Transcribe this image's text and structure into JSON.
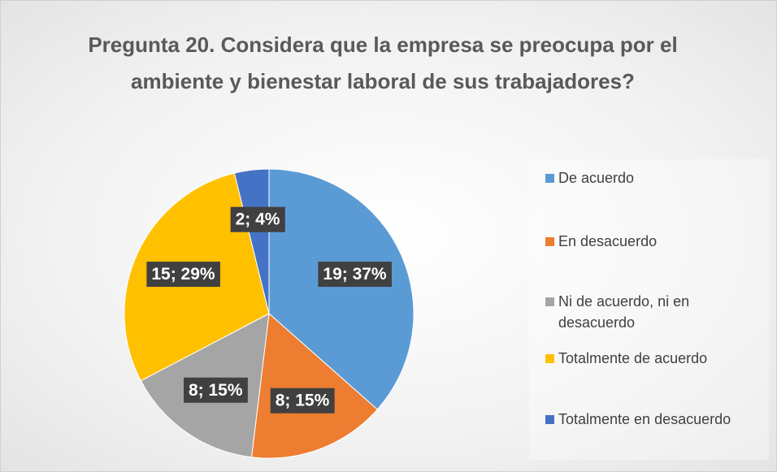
{
  "chart_data": {
    "type": "pie",
    "title": "Pregunta 20. Considera que la empresa se preocupa por el ambiente y bienestar laboral de sus trabajadores?",
    "categories": [
      "De acuerdo",
      "En desacuerdo",
      "Ni de acuerdo, ni en desacuerdo",
      "Totalmente de acuerdo",
      "Totalmente en desacuerdo"
    ],
    "values": [
      19,
      8,
      8,
      15,
      2
    ],
    "value_labels": [
      "19; 37%",
      "8; 15%",
      "8; 15%",
      "15; 29%",
      "2; 4%"
    ],
    "colors": [
      "#5b9bd5",
      "#ed7d31",
      "#a5a5a5",
      "#ffc000",
      "#4472c4"
    ],
    "legend": "right"
  }
}
